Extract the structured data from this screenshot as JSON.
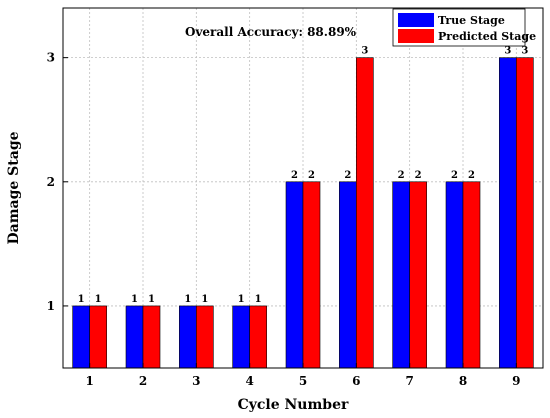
{
  "chart_data": {
    "type": "bar",
    "categories": [
      "1",
      "2",
      "3",
      "4",
      "5",
      "6",
      "7",
      "8",
      "9"
    ],
    "series": [
      {
        "name": "True Stage",
        "values": [
          1,
          1,
          1,
          1,
          2,
          2,
          2,
          2,
          3
        ],
        "color": "#0000ff"
      },
      {
        "name": "Predicted Stage",
        "values": [
          1,
          1,
          1,
          1,
          2,
          3,
          2,
          2,
          3
        ],
        "color": "#ff0000"
      }
    ],
    "xlabel": "Cycle Number",
    "ylabel": "Damage Stage",
    "yticks": [
      1,
      2,
      3
    ],
    "ylim": [
      0.5,
      3.4
    ],
    "annotation": "Overall Accuracy: 88.89%",
    "grid": true,
    "legend_position": "top-right"
  }
}
